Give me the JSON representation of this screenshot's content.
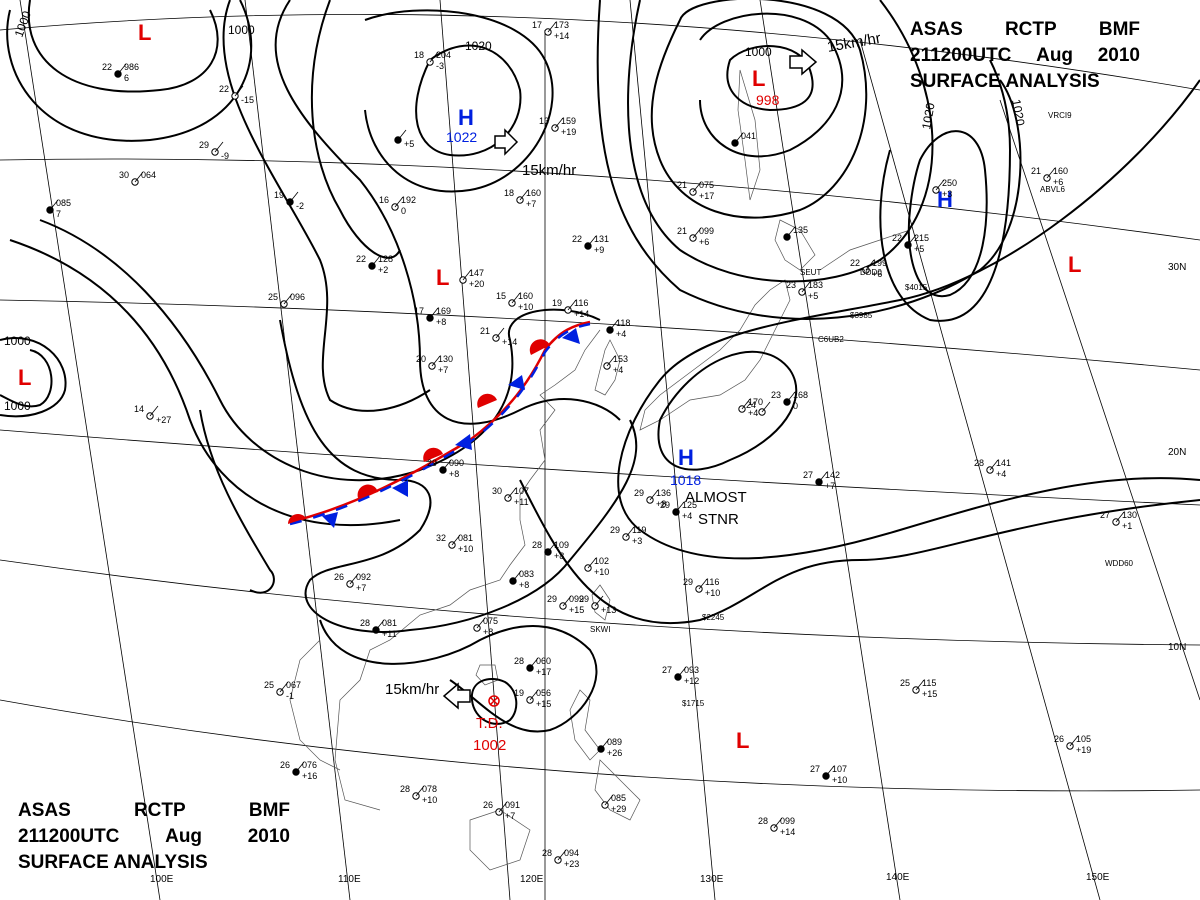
{
  "header": {
    "agency": [
      "ASAS",
      "RCTP",
      "BMF"
    ],
    "time": [
      "211200UTC",
      "Aug",
      "2010"
    ],
    "product": "SURFACE ANALYSIS"
  },
  "lat_labels": [
    "30N",
    "20N",
    "10N"
  ],
  "lon_labels": [
    "100E",
    "110E",
    "120E",
    "130E",
    "140E",
    "150E"
  ],
  "isobar_labels": [
    "1000",
    "1000",
    "1020",
    "1000",
    "1020",
    "1020",
    "1000",
    "1000"
  ],
  "pressure_systems": [
    {
      "type": "L",
      "value": "",
      "color": "#e00000"
    },
    {
      "type": "H",
      "value": "1022",
      "color": "#0020e0"
    },
    {
      "type": "L",
      "value": "998",
      "color": "#e00000"
    },
    {
      "type": "H",
      "value": "",
      "color": "#0020e0"
    },
    {
      "type": "L",
      "value": "",
      "color": "#e00000"
    },
    {
      "type": "L",
      "value": "",
      "color": "#e00000"
    },
    {
      "type": "L",
      "value": "",
      "color": "#e00000"
    },
    {
      "type": "H",
      "value": "1018",
      "color": "#0020e0"
    },
    {
      "type": "L",
      "value": "",
      "color": "#e00000"
    }
  ],
  "tropical_depression": {
    "label": "T.D.",
    "pressure": "1002",
    "color": "#e00000"
  },
  "motion_labels": [
    "15km/hr",
    "15km/hr",
    "15km/hr"
  ],
  "annotations": [
    "ALMOST",
    "STNR"
  ],
  "stations": [
    {
      "t": "22",
      "p": "986",
      "d": "6"
    },
    {
      "t": "29",
      "p": "",
      "d": "-9"
    },
    {
      "t": "30",
      "p": "064",
      "d": ""
    },
    {
      "t": "",
      "p": "085",
      "d": "7"
    },
    {
      "t": "22",
      "p": "",
      "d": "-15"
    },
    {
      "t": "18",
      "p": "204",
      "d": "-3"
    },
    {
      "t": "",
      "p": "",
      "d": "+5"
    },
    {
      "t": "17",
      "p": "173",
      "d": "+14"
    },
    {
      "t": "13",
      "p": "159",
      "d": "+19"
    },
    {
      "t": "19",
      "p": "",
      "d": "-2"
    },
    {
      "t": "16",
      "p": "192",
      "d": "0"
    },
    {
      "t": "18",
      "p": "160",
      "d": "+7"
    },
    {
      "t": "22",
      "p": "128",
      "d": "+2"
    },
    {
      "t": "",
      "p": "147",
      "d": "+20"
    },
    {
      "t": "25",
      "p": "096",
      "d": ""
    },
    {
      "t": "17",
      "p": "169",
      "d": "+8"
    },
    {
      "t": "15",
      "p": "160",
      "d": "+10"
    },
    {
      "t": "19",
      "p": "116",
      "d": "+14"
    },
    {
      "t": "22",
      "p": "131",
      "d": "+9"
    },
    {
      "t": "21",
      "p": "075",
      "d": "+17"
    },
    {
      "t": "21",
      "p": "099",
      "d": "+6"
    },
    {
      "t": "",
      "p": "041",
      "d": ""
    },
    {
      "t": "21",
      "p": "",
      "d": "+14"
    },
    {
      "t": "20",
      "p": "130",
      "d": "+7"
    },
    {
      "t": "",
      "p": "118",
      "d": "+4"
    },
    {
      "t": "",
      "p": "153",
      "d": "+4"
    },
    {
      "t": "14",
      "p": "",
      "d": "+27"
    },
    {
      "t": "29",
      "p": "090",
      "d": "+8"
    },
    {
      "t": "30",
      "p": "107",
      "d": "+11"
    },
    {
      "t": "32",
      "p": "081",
      "d": "+10"
    },
    {
      "t": "28",
      "p": "109",
      "d": "+8"
    },
    {
      "t": "",
      "p": "102",
      "d": "+10"
    },
    {
      "t": "26",
      "p": "092",
      "d": "+7"
    },
    {
      "t": "",
      "p": "083",
      "d": "+8"
    },
    {
      "t": "29",
      "p": "099",
      "d": "+15"
    },
    {
      "t": "29",
      "p": "",
      "d": "+13"
    },
    {
      "t": "28",
      "p": "081",
      "d": "+11"
    },
    {
      "t": "",
      "p": "075",
      "d": "+8"
    },
    {
      "t": "29",
      "p": "119",
      "d": "+3"
    },
    {
      "t": "29",
      "p": "125",
      "d": "+4"
    },
    {
      "t": "29",
      "p": "116",
      "d": "+10"
    },
    {
      "t": "29",
      "p": "136",
      "d": "+8"
    },
    {
      "t": "23",
      "p": "168",
      "d": "0"
    },
    {
      "t": "24",
      "p": "",
      "d": ""
    },
    {
      "t": "",
      "p": "170",
      "d": "+4"
    },
    {
      "t": "",
      "p": "135",
      "d": ""
    },
    {
      "t": "23",
      "p": "183",
      "d": "+5"
    },
    {
      "t": "22",
      "p": "199",
      "d": "+6"
    },
    {
      "t": "22",
      "p": "215",
      "d": "+5"
    },
    {
      "t": "",
      "p": "250",
      "d": "+3"
    },
    {
      "t": "21",
      "p": "160",
      "d": "+6"
    },
    {
      "t": "27",
      "p": "142",
      "d": "+7"
    },
    {
      "t": "28",
      "p": "141",
      "d": "+4"
    },
    {
      "t": "27",
      "p": "130",
      "d": "+1"
    },
    {
      "t": "28",
      "p": "060",
      "d": "+17"
    },
    {
      "t": "19",
      "p": "056",
      "d": "+15"
    },
    {
      "t": "25",
      "p": "067",
      "d": "-1"
    },
    {
      "t": "26",
      "p": "076",
      "d": "+16"
    },
    {
      "t": "28",
      "p": "078",
      "d": "+10"
    },
    {
      "t": "26",
      "p": "091",
      "d": "+7"
    },
    {
      "t": "",
      "p": "089",
      "d": "+26"
    },
    {
      "t": "",
      "p": "085",
      "d": "+29"
    },
    {
      "t": "28",
      "p": "094",
      "d": "+23"
    },
    {
      "t": "27",
      "p": "093",
      "d": "+12"
    },
    {
      "t": "25",
      "p": "115",
      "d": "+15"
    },
    {
      "t": "26",
      "p": "105",
      "d": "+19"
    },
    {
      "t": "27",
      "p": "107",
      "d": "+10"
    },
    {
      "t": "28",
      "p": "099",
      "d": "+14"
    }
  ],
  "station_ids": [
    "VRCI9",
    "ABVL6",
    "SEUT",
    "C6UB2",
    "$3985",
    "$4015",
    "$2245",
    "$1715",
    "SKWI",
    "WDD60",
    "DDD0"
  ],
  "colors": {
    "warm_front": "#e00000",
    "cold_front": "#0020e0",
    "isobar": "#000000",
    "grid": "#000000"
  }
}
